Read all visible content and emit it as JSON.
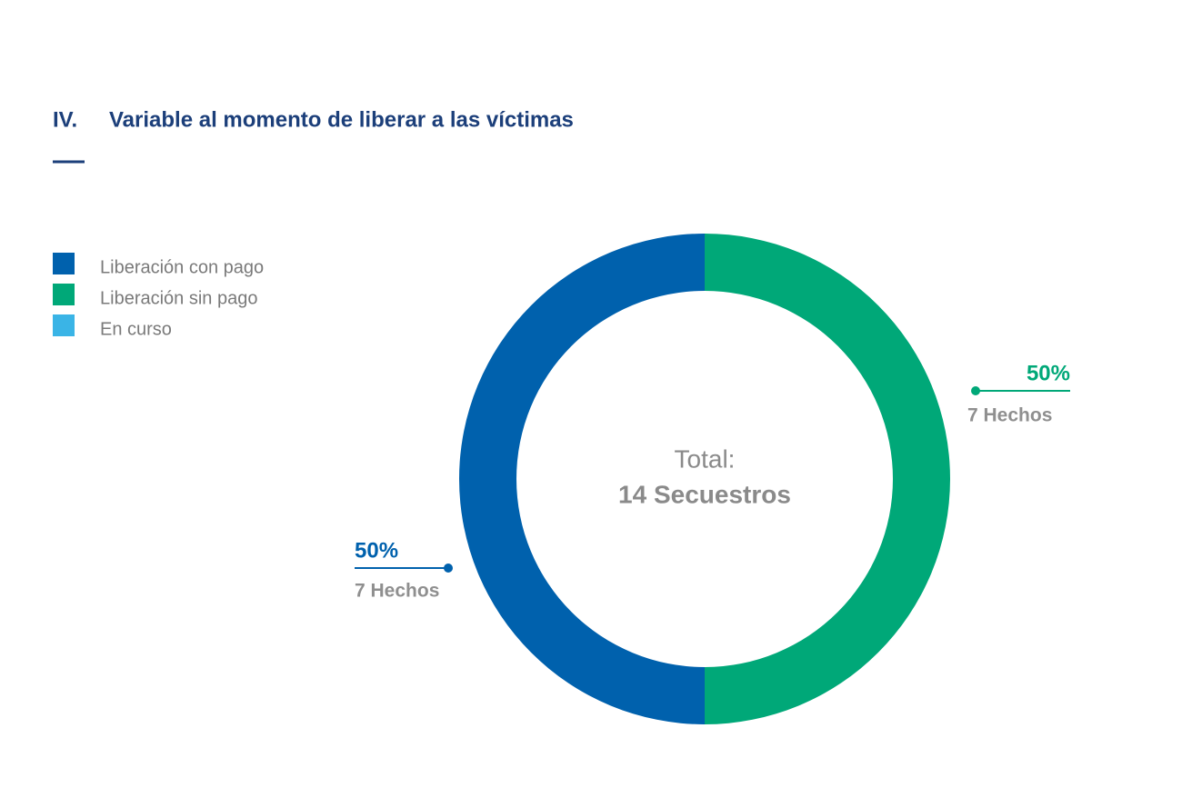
{
  "chart_data": {
    "type": "donut",
    "section": "IV.",
    "title": "Variable al momento de liberar a las víctimas",
    "categories": [
      "Liberación con pago",
      "Liberación sin pago",
      "En curso"
    ],
    "colors": [
      "#0061ad",
      "#00a878",
      "#3ab4e6"
    ],
    "values": [
      50,
      50,
      0
    ],
    "value_labels": [
      "50%",
      "50%",
      null
    ],
    "count_labels": [
      "7 Hechos",
      "7 Hechos",
      null
    ],
    "center_label": "Total:",
    "total_label": "14 Secuestros",
    "legend": "top-left"
  }
}
